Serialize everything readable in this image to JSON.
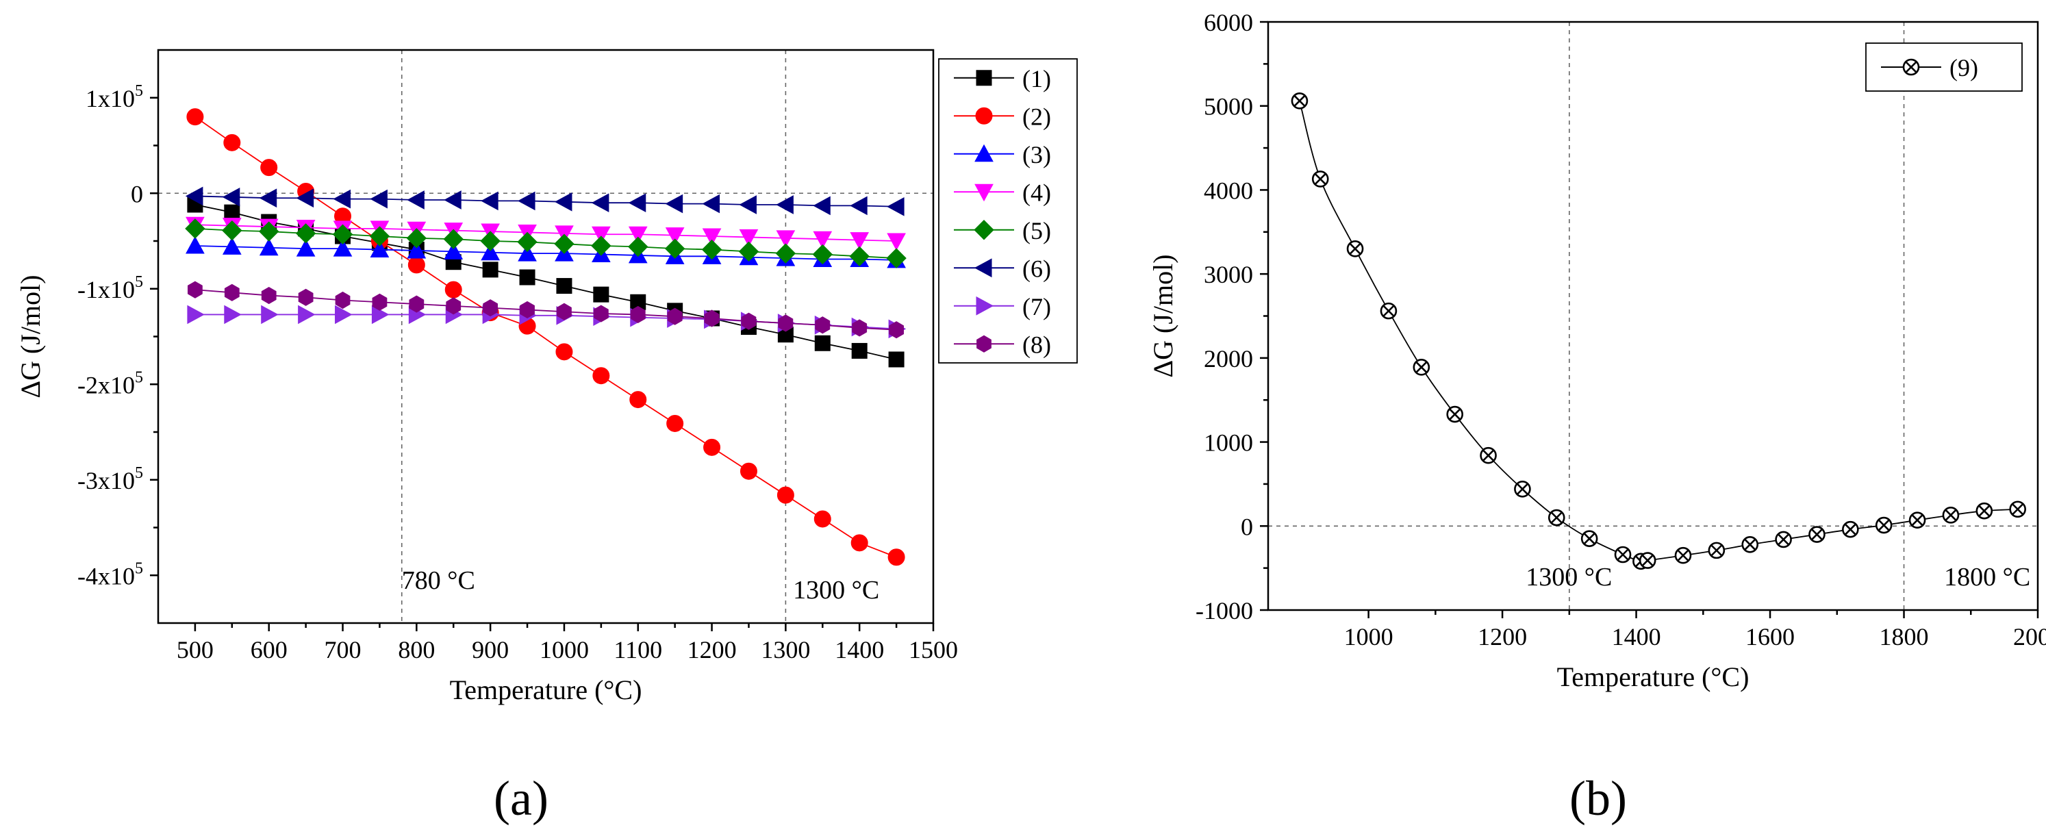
{
  "chart_data": [
    {
      "panel_label": "(a)",
      "type": "line",
      "xlabel": "Temperature (°C)",
      "ylabel": "ΔG (J/mol)",
      "xlim": [
        450,
        1500
      ],
      "ylim": [
        -450000,
        150000
      ],
      "xticks": [
        500,
        600,
        700,
        800,
        900,
        1000,
        1100,
        1200,
        1300,
        1400,
        1500
      ],
      "xtick_labels": [
        "500",
        "600",
        "700",
        "800",
        "900",
        "1000",
        "1100",
        "1200",
        "1300",
        "1400",
        "1500"
      ],
      "yticks": [
        100000,
        0,
        -100000,
        -200000,
        -300000,
        -400000
      ],
      "ytick_labels": [
        {
          "mant": "1x10",
          "exp": "5"
        },
        {
          "mant": "0",
          "exp": ""
        },
        {
          "mant": "-1x10",
          "exp": "5"
        },
        {
          "mant": "-2x10",
          "exp": "5"
        },
        {
          "mant": "-3x10",
          "exp": "5"
        },
        {
          "mant": "-4x10",
          "exp": "5"
        }
      ],
      "reference_lines": {
        "vertical": [
          780,
          1300
        ],
        "horizontal": [
          0
        ]
      },
      "annotations": [
        {
          "text": "780 °C",
          "x": 780,
          "y": -405000
        },
        {
          "text": "1300 °C",
          "x": 1310,
          "y": -415000
        }
      ],
      "legend_position": "right",
      "series": [
        {
          "name": "(1)",
          "color": "#000000",
          "marker": "square",
          "x": [
            500,
            550,
            600,
            650,
            700,
            750,
            800,
            850,
            900,
            950,
            1000,
            1050,
            1100,
            1150,
            1200,
            1250,
            1300,
            1350,
            1400,
            1450
          ],
          "values": [
            -12000,
            -20000,
            -30000,
            -37000,
            -45000,
            -52000,
            -59000,
            -72000,
            -80000,
            -88000,
            -97000,
            -106000,
            -114000,
            -123000,
            -131000,
            -140000,
            -148000,
            -157000,
            -165000,
            -174000
          ]
        },
        {
          "name": "(2)",
          "color": "#ff0000",
          "marker": "circle",
          "x": [
            500,
            550,
            600,
            650,
            700,
            750,
            800,
            850,
            900,
            950,
            1000,
            1050,
            1100,
            1150,
            1200,
            1250,
            1300,
            1350,
            1400,
            1450
          ],
          "values": [
            80000,
            53000,
            27000,
            2000,
            -24000,
            -50000,
            -75000,
            -101000,
            -125000,
            -139000,
            -166000,
            -191000,
            -216000,
            -241000,
            -266000,
            -291000,
            -316000,
            -341000,
            -366000,
            -381000
          ]
        },
        {
          "name": "(3)",
          "color": "#0000ff",
          "marker": "triangle-up",
          "x": [
            500,
            550,
            600,
            650,
            700,
            750,
            800,
            850,
            900,
            950,
            1000,
            1050,
            1100,
            1150,
            1200,
            1250,
            1300,
            1350,
            1400,
            1450
          ],
          "values": [
            -55000,
            -56000,
            -57000,
            -58000,
            -58000,
            -59000,
            -60000,
            -61000,
            -62000,
            -63000,
            -63000,
            -64000,
            -65000,
            -66000,
            -66000,
            -67000,
            -68000,
            -69000,
            -69000,
            -70000
          ]
        },
        {
          "name": "(4)",
          "color": "#ff00ff",
          "marker": "triangle-down",
          "x": [
            500,
            550,
            600,
            650,
            700,
            750,
            800,
            850,
            900,
            950,
            1000,
            1050,
            1100,
            1150,
            1200,
            1250,
            1300,
            1350,
            1400,
            1450
          ],
          "values": [
            -33000,
            -34000,
            -35000,
            -36000,
            -37000,
            -37000,
            -38000,
            -39000,
            -40000,
            -41000,
            -42000,
            -43000,
            -43000,
            -44000,
            -45000,
            -46000,
            -47000,
            -48000,
            -49000,
            -50000
          ]
        },
        {
          "name": "(5)",
          "color": "#008000",
          "marker": "diamond",
          "x": [
            500,
            550,
            600,
            650,
            700,
            750,
            800,
            850,
            900,
            950,
            1000,
            1050,
            1100,
            1150,
            1200,
            1250,
            1300,
            1350,
            1400,
            1450
          ],
          "values": [
            -37000,
            -39000,
            -40000,
            -42000,
            -43000,
            -45000,
            -47000,
            -48000,
            -50000,
            -51000,
            -53000,
            -55000,
            -56000,
            -58000,
            -59000,
            -61000,
            -63000,
            -64000,
            -66000,
            -68000
          ]
        },
        {
          "name": "(6)",
          "color": "#000080",
          "marker": "triangle-left",
          "x": [
            500,
            550,
            600,
            650,
            700,
            750,
            800,
            850,
            900,
            950,
            1000,
            1050,
            1100,
            1150,
            1200,
            1250,
            1300,
            1350,
            1400,
            1450
          ],
          "values": [
            -3000,
            -4000,
            -5000,
            -5000,
            -6000,
            -6000,
            -7000,
            -7000,
            -8000,
            -8000,
            -9000,
            -10000,
            -10000,
            -11000,
            -11000,
            -12000,
            -12000,
            -13000,
            -13000,
            -14000
          ]
        },
        {
          "name": "(7)",
          "color": "#8a2be2",
          "marker": "triangle-right",
          "x": [
            500,
            550,
            600,
            650,
            700,
            750,
            800,
            850,
            900,
            950,
            1000,
            1050,
            1100,
            1150,
            1200,
            1250,
            1300,
            1350,
            1400,
            1450
          ],
          "values": [
            -127000,
            -127000,
            -127000,
            -127000,
            -127000,
            -127000,
            -127000,
            -127000,
            -127000,
            -128000,
            -128000,
            -129000,
            -130000,
            -131000,
            -132000,
            -134000,
            -136000,
            -138000,
            -140000,
            -142000
          ]
        },
        {
          "name": "(8)",
          "color": "#800080",
          "marker": "hexagon",
          "x": [
            500,
            550,
            600,
            650,
            700,
            750,
            800,
            850,
            900,
            950,
            1000,
            1050,
            1100,
            1150,
            1200,
            1250,
            1300,
            1350,
            1400,
            1450
          ],
          "values": [
            -101000,
            -104000,
            -107000,
            -109000,
            -112000,
            -114000,
            -116000,
            -118000,
            -120000,
            -122000,
            -124000,
            -126000,
            -127000,
            -129000,
            -131000,
            -134000,
            -136000,
            -138000,
            -141000,
            -143000
          ]
        }
      ]
    },
    {
      "panel_label": "(b)",
      "type": "line",
      "xlabel": "Temperature (°C)",
      "ylabel": "ΔG (J/mol)",
      "xlim": [
        850,
        2000
      ],
      "ylim": [
        -1000,
        6000
      ],
      "xticks": [
        1000,
        1200,
        1400,
        1600,
        1800,
        2000
      ],
      "xtick_labels": [
        "1000",
        "1200",
        "1400",
        "1600",
        "1800",
        "2000"
      ],
      "yticks": [
        6000,
        5000,
        4000,
        3000,
        2000,
        1000,
        0,
        -1000
      ],
      "ytick_labels": [
        "6000",
        "5000",
        "4000",
        "3000",
        "2000",
        "1000",
        "0",
        "-1000"
      ],
      "reference_lines": {
        "vertical": [
          1300,
          1800
        ],
        "horizontal": [
          0
        ]
      },
      "annotations": [
        {
          "text": "1300 °C",
          "x": 1235,
          "y": -600
        },
        {
          "text": "1800 °C",
          "x": 1860,
          "y": -600
        }
      ],
      "legend_position": "top-right",
      "series": [
        {
          "name": "(9)",
          "color": "#000000",
          "marker": "circle-x",
          "x": [
            897,
            928,
            980,
            1030,
            1079,
            1129,
            1179,
            1230,
            1281,
            1330,
            1380,
            1407,
            1417,
            1470,
            1520,
            1570,
            1620,
            1670,
            1720,
            1770,
            1820,
            1870,
            1920,
            1970
          ],
          "values": [
            5060,
            4130,
            3300,
            2560,
            1890,
            1330,
            840,
            440,
            100,
            -150,
            -340,
            -420,
            -410,
            -350,
            -290,
            -220,
            -160,
            -100,
            -40,
            10,
            70,
            130,
            180,
            200
          ]
        }
      ]
    }
  ]
}
